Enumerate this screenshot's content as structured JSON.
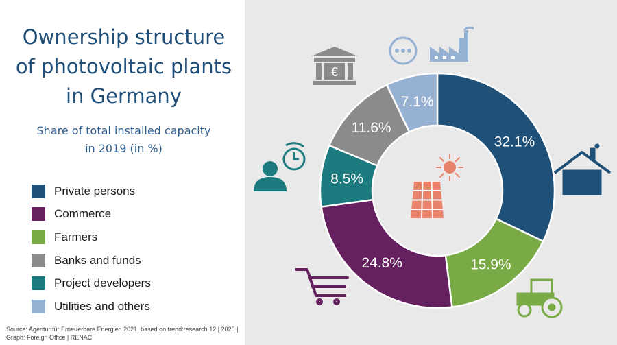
{
  "title_lines": [
    "Ownership structure",
    "of photovoltaic plants",
    "in Germany"
  ],
  "subtitle_lines": [
    "Share of total installed capacity",
    "in 2019 (in %)"
  ],
  "source_lines": [
    "Source: Agentur für Erneuerbare Energien 2021, based on trend:research 12 | 2020 |",
    "Graph: Foreign Office | RENAC"
  ],
  "chart_data": {
    "type": "pie",
    "variant": "donut",
    "categories": [
      "Private persons",
      "Farmers",
      "Commerce",
      "Project developers",
      "Banks and funds",
      "Utilities and others"
    ],
    "values": [
      32.1,
      15.9,
      24.8,
      8.5,
      11.6,
      7.1
    ],
    "labels": [
      "32.1%",
      "15.9%",
      "24.8%",
      "8.5%",
      "11.6%",
      "7.1%"
    ],
    "colors": [
      "#1f5078",
      "#79aa45",
      "#65215f",
      "#1b7b7f",
      "#8b8b8b",
      "#97b1d3"
    ],
    "unit": "%",
    "legend_placement": "left",
    "legend_order": [
      "Private persons",
      "Commerce",
      "Farmers",
      "Banks and funds",
      "Project developers",
      "Utilities and others"
    ]
  },
  "icons": [
    "bank-euro-icon",
    "more-dots-icon",
    "factory-icon",
    "house-icon",
    "person-clock-icon",
    "shopping-cart-icon",
    "tractor-icon",
    "sun-icon",
    "solar-panel-icon"
  ]
}
